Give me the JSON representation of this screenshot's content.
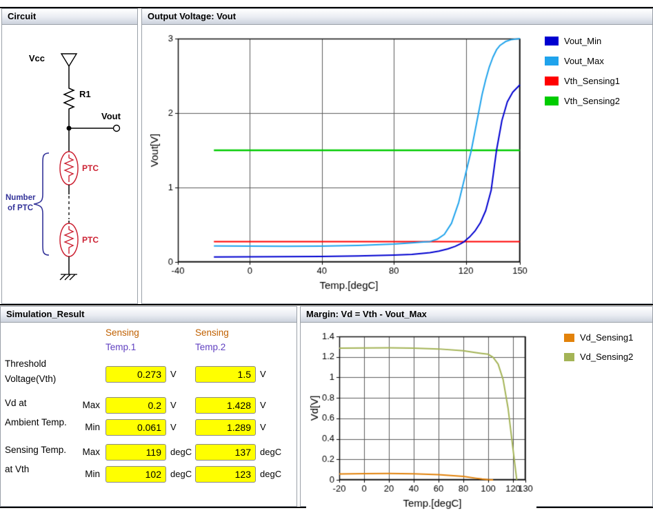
{
  "panels": {
    "circuit": {
      "title": "Circuit",
      "labels": {
        "vcc": "Vcc",
        "r1": "R1",
        "vout": "Vout",
        "ptc_top": "PTC",
        "ptc_bottom": "PTC",
        "number_line1": "Number",
        "number_line2": "of PTC"
      },
      "colors": {
        "ptc": "#cc2233",
        "annotation": "#333399",
        "wire": "#000000"
      }
    },
    "result": {
      "title": "Simulation_Result",
      "header_colors": {
        "line1": "#c06000",
        "line2": "#6040c0"
      },
      "columns": [
        {
          "line1": "Sensing",
          "line2": "Temp.1"
        },
        {
          "line1": "Sensing",
          "line2": "Temp.2"
        }
      ],
      "rows": {
        "threshold": {
          "label1": "Threshold",
          "label2": "Voltage(Vth)",
          "v1": "0.273",
          "u1": "V",
          "v2": "1.5",
          "u2": "V"
        },
        "vd_ambient": {
          "label1": "Vd at",
          "label2": "Ambient Temp.",
          "max_label": "Max",
          "min_label": "Min",
          "max_v1": "0.2",
          "max_u1": "V",
          "max_v2": "1.428",
          "max_u2": "V",
          "min_v1": "0.061",
          "min_u1": "V",
          "min_v2": "1.289",
          "min_u2": "V"
        },
        "sensing_temp": {
          "label1": "Sensing Temp.",
          "label2": "at Vth",
          "max_label": "Max",
          "min_label": "Min",
          "max_v1": "119",
          "max_u1": "degC",
          "max_v2": "137",
          "max_u2": "degC",
          "min_v1": "102",
          "min_u1": "degC",
          "min_v2": "123",
          "min_u2": "degC"
        }
      }
    }
  },
  "chart_data": [
    {
      "type": "line",
      "title": "Output Voltage: Vout",
      "xlabel": "Temp.[degC]",
      "ylabel": "Vout[V]",
      "xlim": [
        -40,
        150
      ],
      "ylim": [
        0,
        3
      ],
      "xticks": [
        -40,
        0,
        40,
        80,
        120,
        150
      ],
      "yticks": [
        0,
        1,
        2,
        3
      ],
      "grid": true,
      "legend_position": "right",
      "series": [
        {
          "name": "Vout_Min",
          "color": "#0000d0",
          "width": 2,
          "x": [
            -20,
            0,
            20,
            40,
            60,
            80,
            90,
            100,
            105,
            110,
            114,
            117,
            119,
            122,
            125,
            128,
            131,
            134,
            137,
            140,
            143,
            146,
            150
          ],
          "y": [
            0.068,
            0.07,
            0.072,
            0.075,
            0.081,
            0.092,
            0.102,
            0.125,
            0.145,
            0.176,
            0.21,
            0.245,
            0.273,
            0.335,
            0.415,
            0.525,
            0.69,
            0.96,
            1.5,
            1.9,
            2.15,
            2.28,
            2.38
          ]
        },
        {
          "name": "Vout_Max",
          "color": "#1fa3ec",
          "width": 2,
          "x": [
            -20,
            0,
            20,
            40,
            60,
            80,
            90,
            95,
            100,
            104,
            108,
            112,
            116,
            119,
            121,
            123,
            125,
            127,
            129,
            131,
            133,
            135,
            137,
            139,
            142,
            145,
            150
          ],
          "y": [
            0.215,
            0.212,
            0.211,
            0.214,
            0.222,
            0.24,
            0.258,
            0.266,
            0.274,
            0.305,
            0.37,
            0.52,
            0.8,
            1.1,
            1.3,
            1.5,
            1.75,
            2.0,
            2.25,
            2.45,
            2.62,
            2.75,
            2.85,
            2.91,
            2.96,
            2.985,
            3.0
          ]
        },
        {
          "name": "Vth_Sensing1",
          "color": "#ff0000",
          "width": 2,
          "x": [
            -20,
            150
          ],
          "y": [
            0.273,
            0.273
          ]
        },
        {
          "name": "Vth_Sensing2",
          "color": "#00cc00",
          "width": 2.5,
          "x": [
            -20,
            150
          ],
          "y": [
            1.5,
            1.5
          ]
        }
      ]
    },
    {
      "type": "line",
      "title": "Margin: Vd = Vth - Vout_Max",
      "xlabel": "Temp.[degC]",
      "ylabel": "Vd[V]",
      "xlim": [
        -20,
        130
      ],
      "ylim": [
        0,
        1.4
      ],
      "xticks": [
        -20,
        0,
        20,
        40,
        60,
        80,
        100,
        120,
        130
      ],
      "yticks": [
        0,
        0.2,
        0.4,
        0.6,
        0.8,
        1,
        1.2,
        1.4
      ],
      "grid": true,
      "legend_position": "right",
      "series": [
        {
          "name": "Vd_Sensing1",
          "color": "#e2820a",
          "width": 2,
          "x": [
            -20,
            0,
            20,
            40,
            60,
            80,
            90,
            95,
            100,
            102,
            104
          ],
          "y": [
            0.058,
            0.061,
            0.062,
            0.059,
            0.051,
            0.033,
            0.016,
            0.008,
            0.002,
            0.0,
            0.0
          ]
        },
        {
          "name": "Vd_Sensing2",
          "color": "#a4b456",
          "width": 2,
          "x": [
            -20,
            0,
            20,
            40,
            60,
            80,
            90,
            95,
            100,
            104,
            108,
            112,
            116,
            119,
            121,
            122,
            123
          ],
          "y": [
            1.285,
            1.288,
            1.289,
            1.286,
            1.278,
            1.26,
            1.242,
            1.234,
            1.226,
            1.195,
            1.13,
            0.98,
            0.7,
            0.4,
            0.2,
            0.1,
            0.0
          ]
        }
      ]
    }
  ]
}
